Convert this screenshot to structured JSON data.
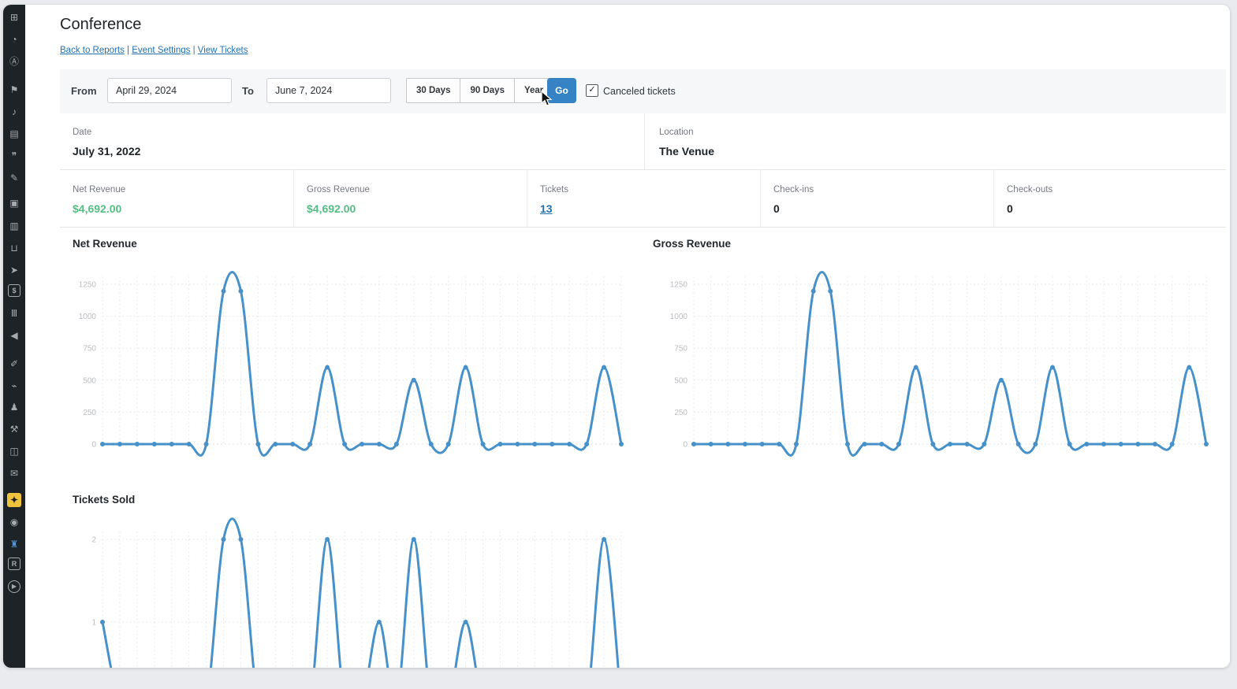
{
  "accent_colors": {
    "wp_link_blue": "#2271b1",
    "go_button_blue": "#3582c4",
    "chart_line_blue": "#4791ca",
    "money_green": "#55bd84",
    "sidebar_dark": "#1e2327",
    "tickets_plugin_yellow": "#f0c33c",
    "events_icon_blue": "#4f94d4"
  },
  "sidebar": {
    "items": [
      {
        "name": "grid-icon",
        "glyph": "⊞"
      },
      {
        "name": "dashboard-gauge-icon",
        "glyph": "◔"
      },
      {
        "name": "a-badge-icon",
        "glyph": "Ⓐ"
      },
      {
        "name": "posts-pin-icon",
        "glyph": "⚑"
      },
      {
        "name": "media-icon",
        "glyph": "♪"
      },
      {
        "name": "pages-icon",
        "glyph": "▤"
      },
      {
        "name": "comments-icon",
        "glyph": "❞"
      },
      {
        "name": "appearance-icon",
        "glyph": "✎"
      },
      {
        "name": "plugin-box-icon",
        "glyph": "▣"
      },
      {
        "name": "archive-icon",
        "glyph": "▥"
      },
      {
        "name": "cart-icon",
        "glyph": "⊔"
      },
      {
        "name": "swoosh-icon",
        "glyph": "➤"
      },
      {
        "name": "payments-icon",
        "glyph": "$",
        "boxed": true
      },
      {
        "name": "bar-chart-icon",
        "glyph": "Ⅲ"
      },
      {
        "name": "megaphone-icon",
        "glyph": "◀"
      },
      {
        "name": "brush-icon",
        "glyph": "✐"
      },
      {
        "name": "plugins-icon",
        "glyph": "⌁"
      },
      {
        "name": "users-icon",
        "glyph": "♟"
      },
      {
        "name": "tools-icon",
        "glyph": "⚒"
      },
      {
        "name": "settings-panel-icon",
        "glyph": "◫"
      },
      {
        "name": "mail-icon",
        "glyph": "✉"
      },
      {
        "name": "tickets-plugin-icon",
        "glyph": "✦",
        "bg": "#f0c33c",
        "color": "#1d2327"
      },
      {
        "name": "camera-plugin-icon",
        "glyph": "◉"
      },
      {
        "name": "events-building-icon",
        "glyph": "♜",
        "color": "#4f94d4"
      },
      {
        "name": "r-badge-icon",
        "glyph": "R",
        "boxed": true
      },
      {
        "name": "video-play-icon",
        "glyph": "▶",
        "round": true
      }
    ]
  },
  "header": {
    "title": "Conference",
    "links": [
      "Back to Reports",
      "Event Settings",
      "View Tickets"
    ],
    "separator": "|"
  },
  "filters": {
    "from_label": "From",
    "from_value": "April 29, 2024",
    "to_label": "To",
    "to_value": "June 7, 2024",
    "range_buttons": [
      "30 Days",
      "90 Days",
      "Year"
    ],
    "go_label": "Go",
    "canceled_checkbox_checked": true,
    "canceled_checkbox_glyph": "✓",
    "canceled_label": "Canceled tickets"
  },
  "event_info": {
    "date_label": "Date",
    "date_value": "July 31, 2022",
    "location_label": "Location",
    "location_value": "The Venue"
  },
  "stats": {
    "cells": [
      {
        "label": "Net Revenue",
        "value": "$4,692.00"
      },
      {
        "label": "Gross Revenue",
        "value": "$4,692.00"
      },
      {
        "label": "Tickets",
        "value": "13"
      },
      {
        "label": "Check-ins",
        "value": "0"
      },
      {
        "label": "Check-outs",
        "value": "0"
      }
    ]
  },
  "chart_data": [
    {
      "id": "net-revenue",
      "type": "line",
      "title": "Net Revenue",
      "values": [
        0,
        0,
        0,
        0,
        0,
        0,
        0,
        1196,
        1196,
        0,
        0,
        0,
        0,
        600,
        0,
        0,
        0,
        0,
        500,
        0,
        0,
        600,
        0,
        0,
        0,
        0,
        0,
        0,
        0,
        600,
        0
      ],
      "y_ticks": [
        0,
        250,
        500,
        750,
        1000,
        1250
      ],
      "ylim": [
        0,
        1250
      ],
      "x_axis_labels_visible": false,
      "x_range_from_filter": [
        "April 29, 2024",
        "June 7, 2024"
      ],
      "grid": true,
      "legend": false,
      "line_color": "#4791ca"
    },
    {
      "id": "gross-revenue",
      "type": "line",
      "title": "Gross Revenue",
      "values": [
        0,
        0,
        0,
        0,
        0,
        0,
        0,
        1196,
        1196,
        0,
        0,
        0,
        0,
        600,
        0,
        0,
        0,
        0,
        500,
        0,
        0,
        600,
        0,
        0,
        0,
        0,
        0,
        0,
        0,
        600,
        0
      ],
      "y_ticks": [
        0,
        250,
        500,
        750,
        1000,
        1250
      ],
      "ylim": [
        0,
        1250
      ],
      "x_axis_labels_visible": false,
      "x_range_from_filter": [
        "April 29, 2024",
        "June 7, 2024"
      ],
      "grid": true,
      "legend": false,
      "line_color": "#4791ca"
    },
    {
      "id": "tickets-sold",
      "type": "line",
      "title": "Tickets Sold",
      "values": [
        1,
        0,
        0,
        0,
        0,
        0,
        0,
        2,
        2,
        0,
        0,
        0,
        0,
        2,
        0,
        0,
        1,
        0,
        2,
        0,
        0,
        1,
        0,
        0,
        0,
        0,
        0,
        0,
        0,
        2,
        0
      ],
      "y_ticks": [
        1,
        2
      ],
      "ylim": [
        0,
        2
      ],
      "x_axis_labels_visible": false,
      "bottom_clipped_by_viewport": true,
      "grid": true,
      "legend": false,
      "line_color": "#4791ca"
    }
  ]
}
